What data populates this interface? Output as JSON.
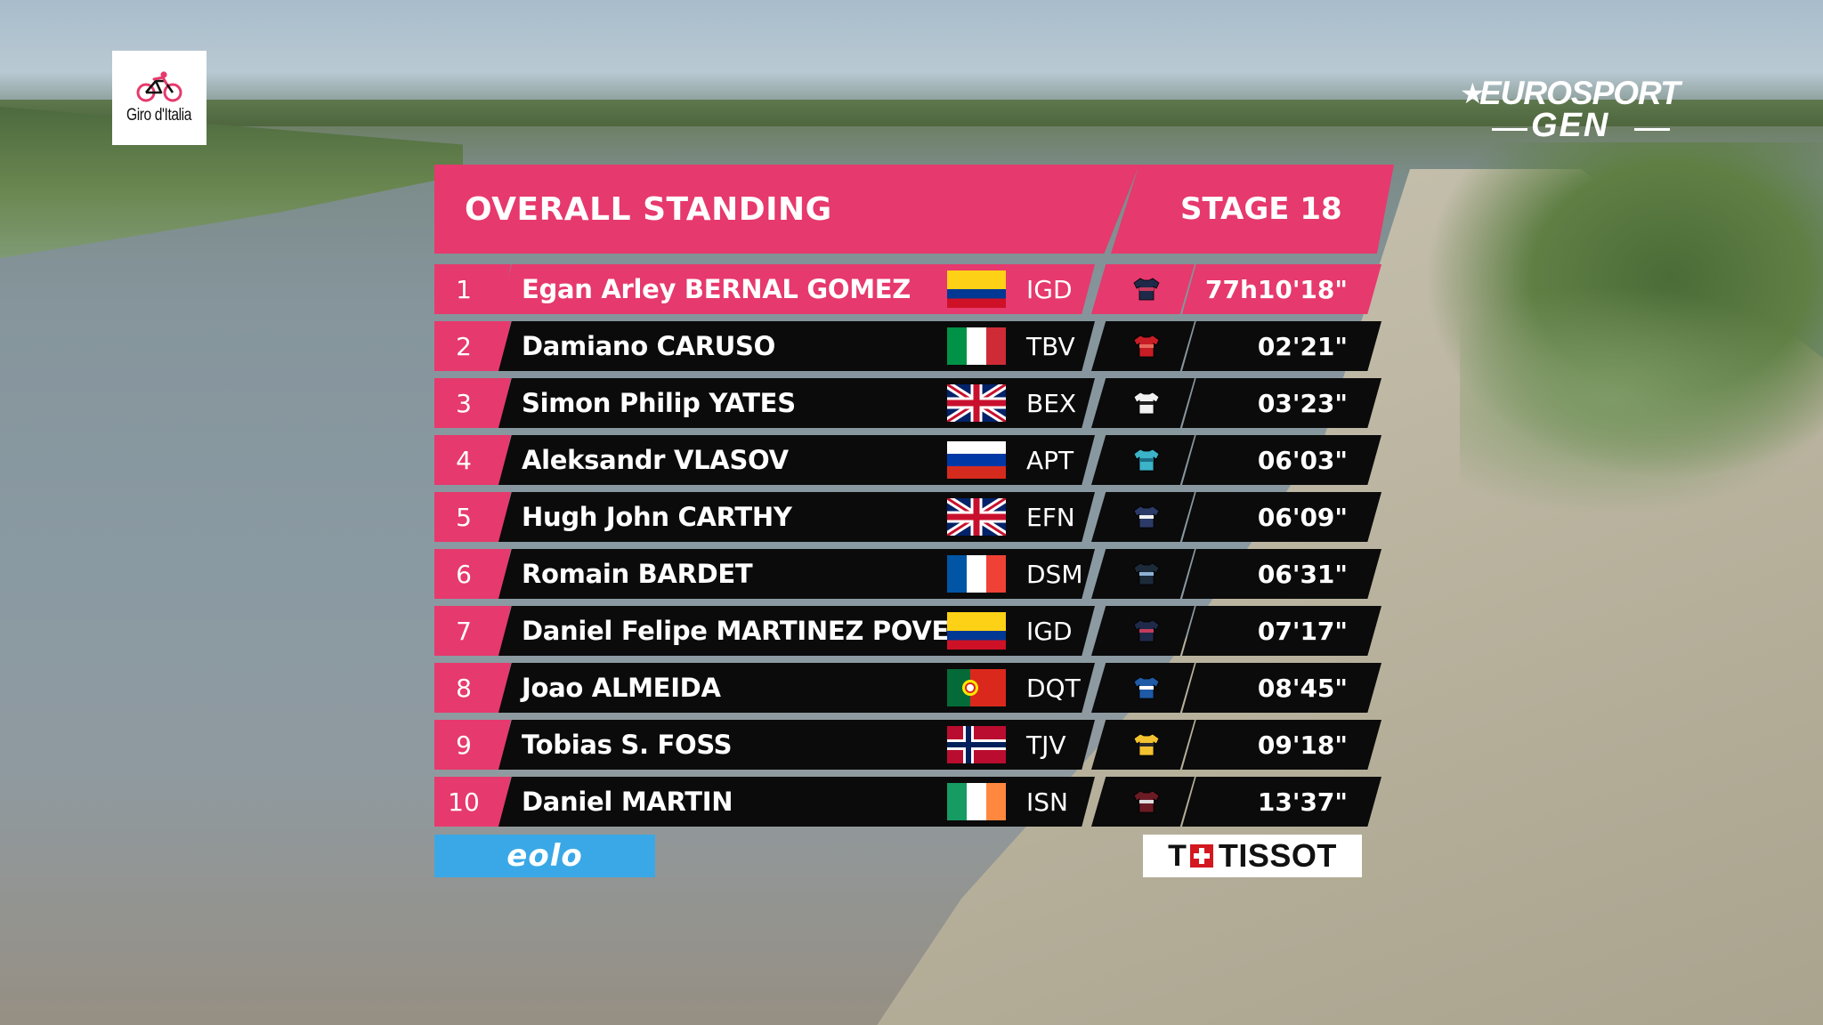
{
  "header": {
    "title": "OVERALL STANDING",
    "stage": "STAGE 18"
  },
  "branding": {
    "event_logo": "Giro d'Italia",
    "broadcaster_line1": "EUROSPORT",
    "broadcaster_line2": "GEN",
    "sponsor_left": "eolo",
    "sponsor_right": "TISSOT",
    "sponsor_right_mark": "T"
  },
  "colors": {
    "accent_pink": "#e6396d",
    "row_black": "#0b0b0b",
    "eolo_blue": "#3aa8e6"
  },
  "standings": [
    {
      "pos": "1",
      "name": "Egan Arley BERNAL GOMEZ",
      "flag": "colombia-flag",
      "team": "IGD",
      "jersey": "navy-jersey-icon",
      "time": "77h10'18\""
    },
    {
      "pos": "2",
      "name": "Damiano CARUSO",
      "flag": "italy-flag",
      "team": "TBV",
      "jersey": "red-jersey-icon",
      "time": "02'21\""
    },
    {
      "pos": "3",
      "name": "Simon Philip YATES",
      "flag": "uk-flag",
      "team": "BEX",
      "jersey": "white-jersey-icon",
      "time": "03'23\""
    },
    {
      "pos": "4",
      "name": "Aleksandr VLASOV",
      "flag": "russia-flag",
      "team": "APT",
      "jersey": "teal-jersey-icon",
      "time": "06'03\""
    },
    {
      "pos": "5",
      "name": "Hugh John CARTHY",
      "flag": "uk-flag",
      "team": "EFN",
      "jersey": "pink-blue-jersey-icon",
      "time": "06'09\""
    },
    {
      "pos": "6",
      "name": "Romain BARDET",
      "flag": "france-flag",
      "team": "DSM",
      "jersey": "dark-striped-jersey-icon",
      "time": "06'31\""
    },
    {
      "pos": "7",
      "name": "Daniel Felipe MARTINEZ POVEDA",
      "flag": "colombia-flag",
      "team": "IGD",
      "jersey": "navy-jersey-icon",
      "time": "07'17\""
    },
    {
      "pos": "8",
      "name": "Joao ALMEIDA",
      "flag": "portugal-flag",
      "team": "DQT",
      "jersey": "blue-jersey-icon",
      "time": "08'45\""
    },
    {
      "pos": "9",
      "name": "Tobias S. FOSS",
      "flag": "norway-flag",
      "team": "TJV",
      "jersey": "yellow-jersey-icon",
      "time": "09'18\""
    },
    {
      "pos": "10",
      "name": "Daniel MARTIN",
      "flag": "ireland-flag",
      "team": "ISN",
      "jersey": "maroon-jersey-icon",
      "time": "13'37\""
    }
  ]
}
